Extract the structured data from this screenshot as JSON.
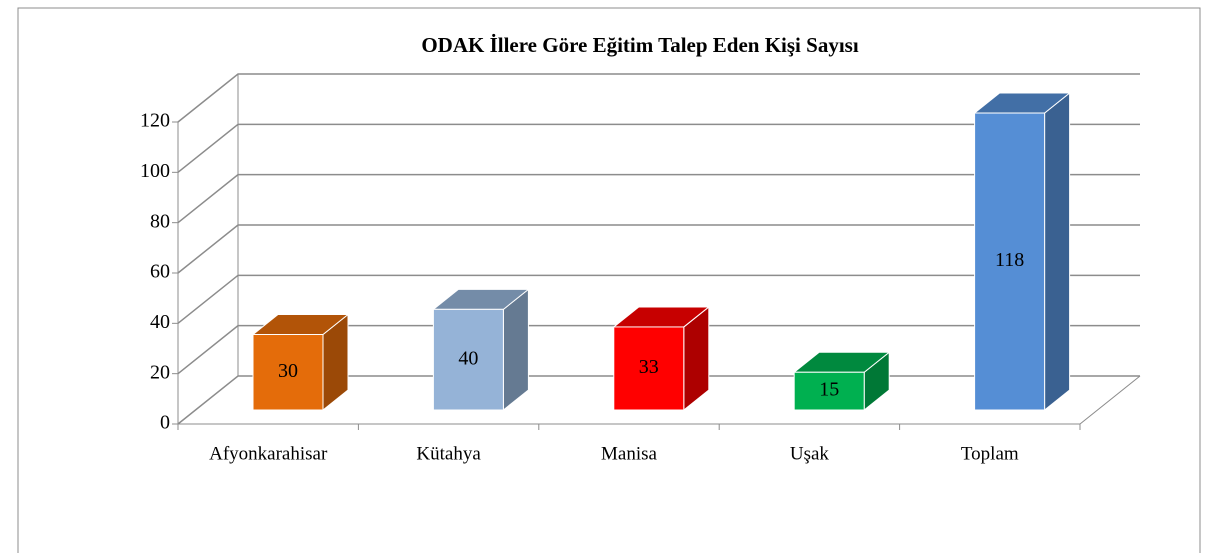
{
  "chart_data": {
    "type": "bar3d",
    "title": "ODAK İllere Göre Eğitim Talep Eden Kişi Sayısı",
    "categories": [
      "Afyonkarahisar",
      "Kütahya",
      "Manisa",
      "Uşak",
      "Toplam"
    ],
    "values": [
      30,
      40,
      33,
      15,
      118
    ],
    "colors": [
      "#e46c0a",
      "#95b3d7",
      "#ff0000",
      "#00b050",
      "#558ed5"
    ],
    "ylim": [
      0,
      120
    ],
    "yticks": [
      0,
      20,
      40,
      60,
      80,
      100,
      120
    ],
    "grid": true
  }
}
